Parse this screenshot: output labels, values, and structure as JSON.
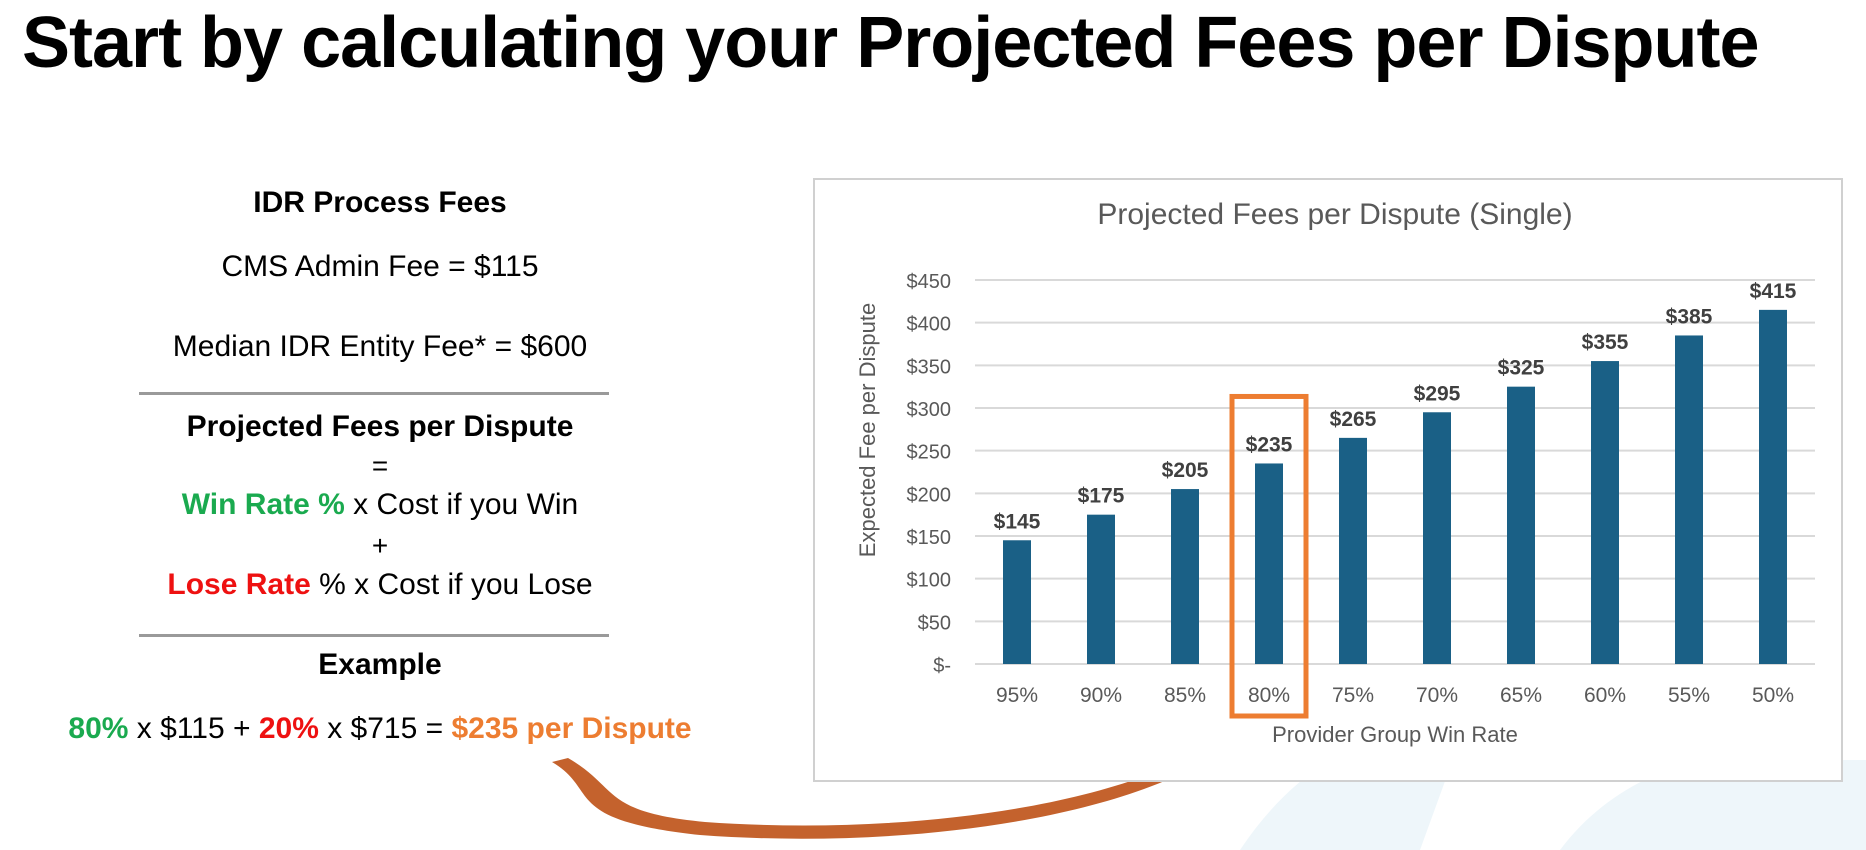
{
  "slide": {
    "title": "Start by calculating your Projected Fees per Dispute"
  },
  "fees": {
    "heading": "IDR Process Fees",
    "admin_fee": "CMS Admin Fee = $115",
    "entity_fee": "Median IDR Entity Fee* = $600"
  },
  "formula": {
    "heading": "Projected Fees per Dispute",
    "equals": "=",
    "win_label": "Win Rate %",
    "win_rest": " x Cost if you Win",
    "plus": "+",
    "lose_label": "Lose Rate",
    "lose_rest": " % x Cost if you Lose"
  },
  "example": {
    "heading": "Example",
    "win_pct": "80%",
    "part1": " x $115 + ",
    "lose_pct": "20%",
    "part2": " x $715 = ",
    "result": "$235 per Dispute"
  },
  "chart_data": {
    "type": "bar",
    "title": "Projected Fees per Dispute (Single)",
    "xlabel": "Provider Group Win Rate",
    "ylabel": "Expected Fee per Dispute",
    "categories": [
      "95%",
      "90%",
      "85%",
      "80%",
      "75%",
      "70%",
      "65%",
      "60%",
      "55%",
      "50%"
    ],
    "values": [
      145,
      175,
      205,
      235,
      265,
      295,
      325,
      355,
      385,
      415
    ],
    "data_labels": [
      "$145",
      "$175",
      "$205",
      "$235",
      "$265",
      "$295",
      "$325",
      "$355",
      "$385",
      "$415"
    ],
    "y_ticks": [
      0,
      50,
      100,
      150,
      200,
      250,
      300,
      350,
      400,
      450
    ],
    "y_tick_labels": [
      "$-",
      "$50",
      "$100",
      "$150",
      "$200",
      "$250",
      "$300",
      "$350",
      "$400",
      "$450"
    ],
    "ylim": [
      0,
      450
    ],
    "grid": true,
    "legend": "none",
    "highlighted_category": "80%",
    "colors": {
      "bar": "#1a6086",
      "highlight": "#ed7d31",
      "grid": "#d9d9d9",
      "text": "#595959"
    }
  }
}
